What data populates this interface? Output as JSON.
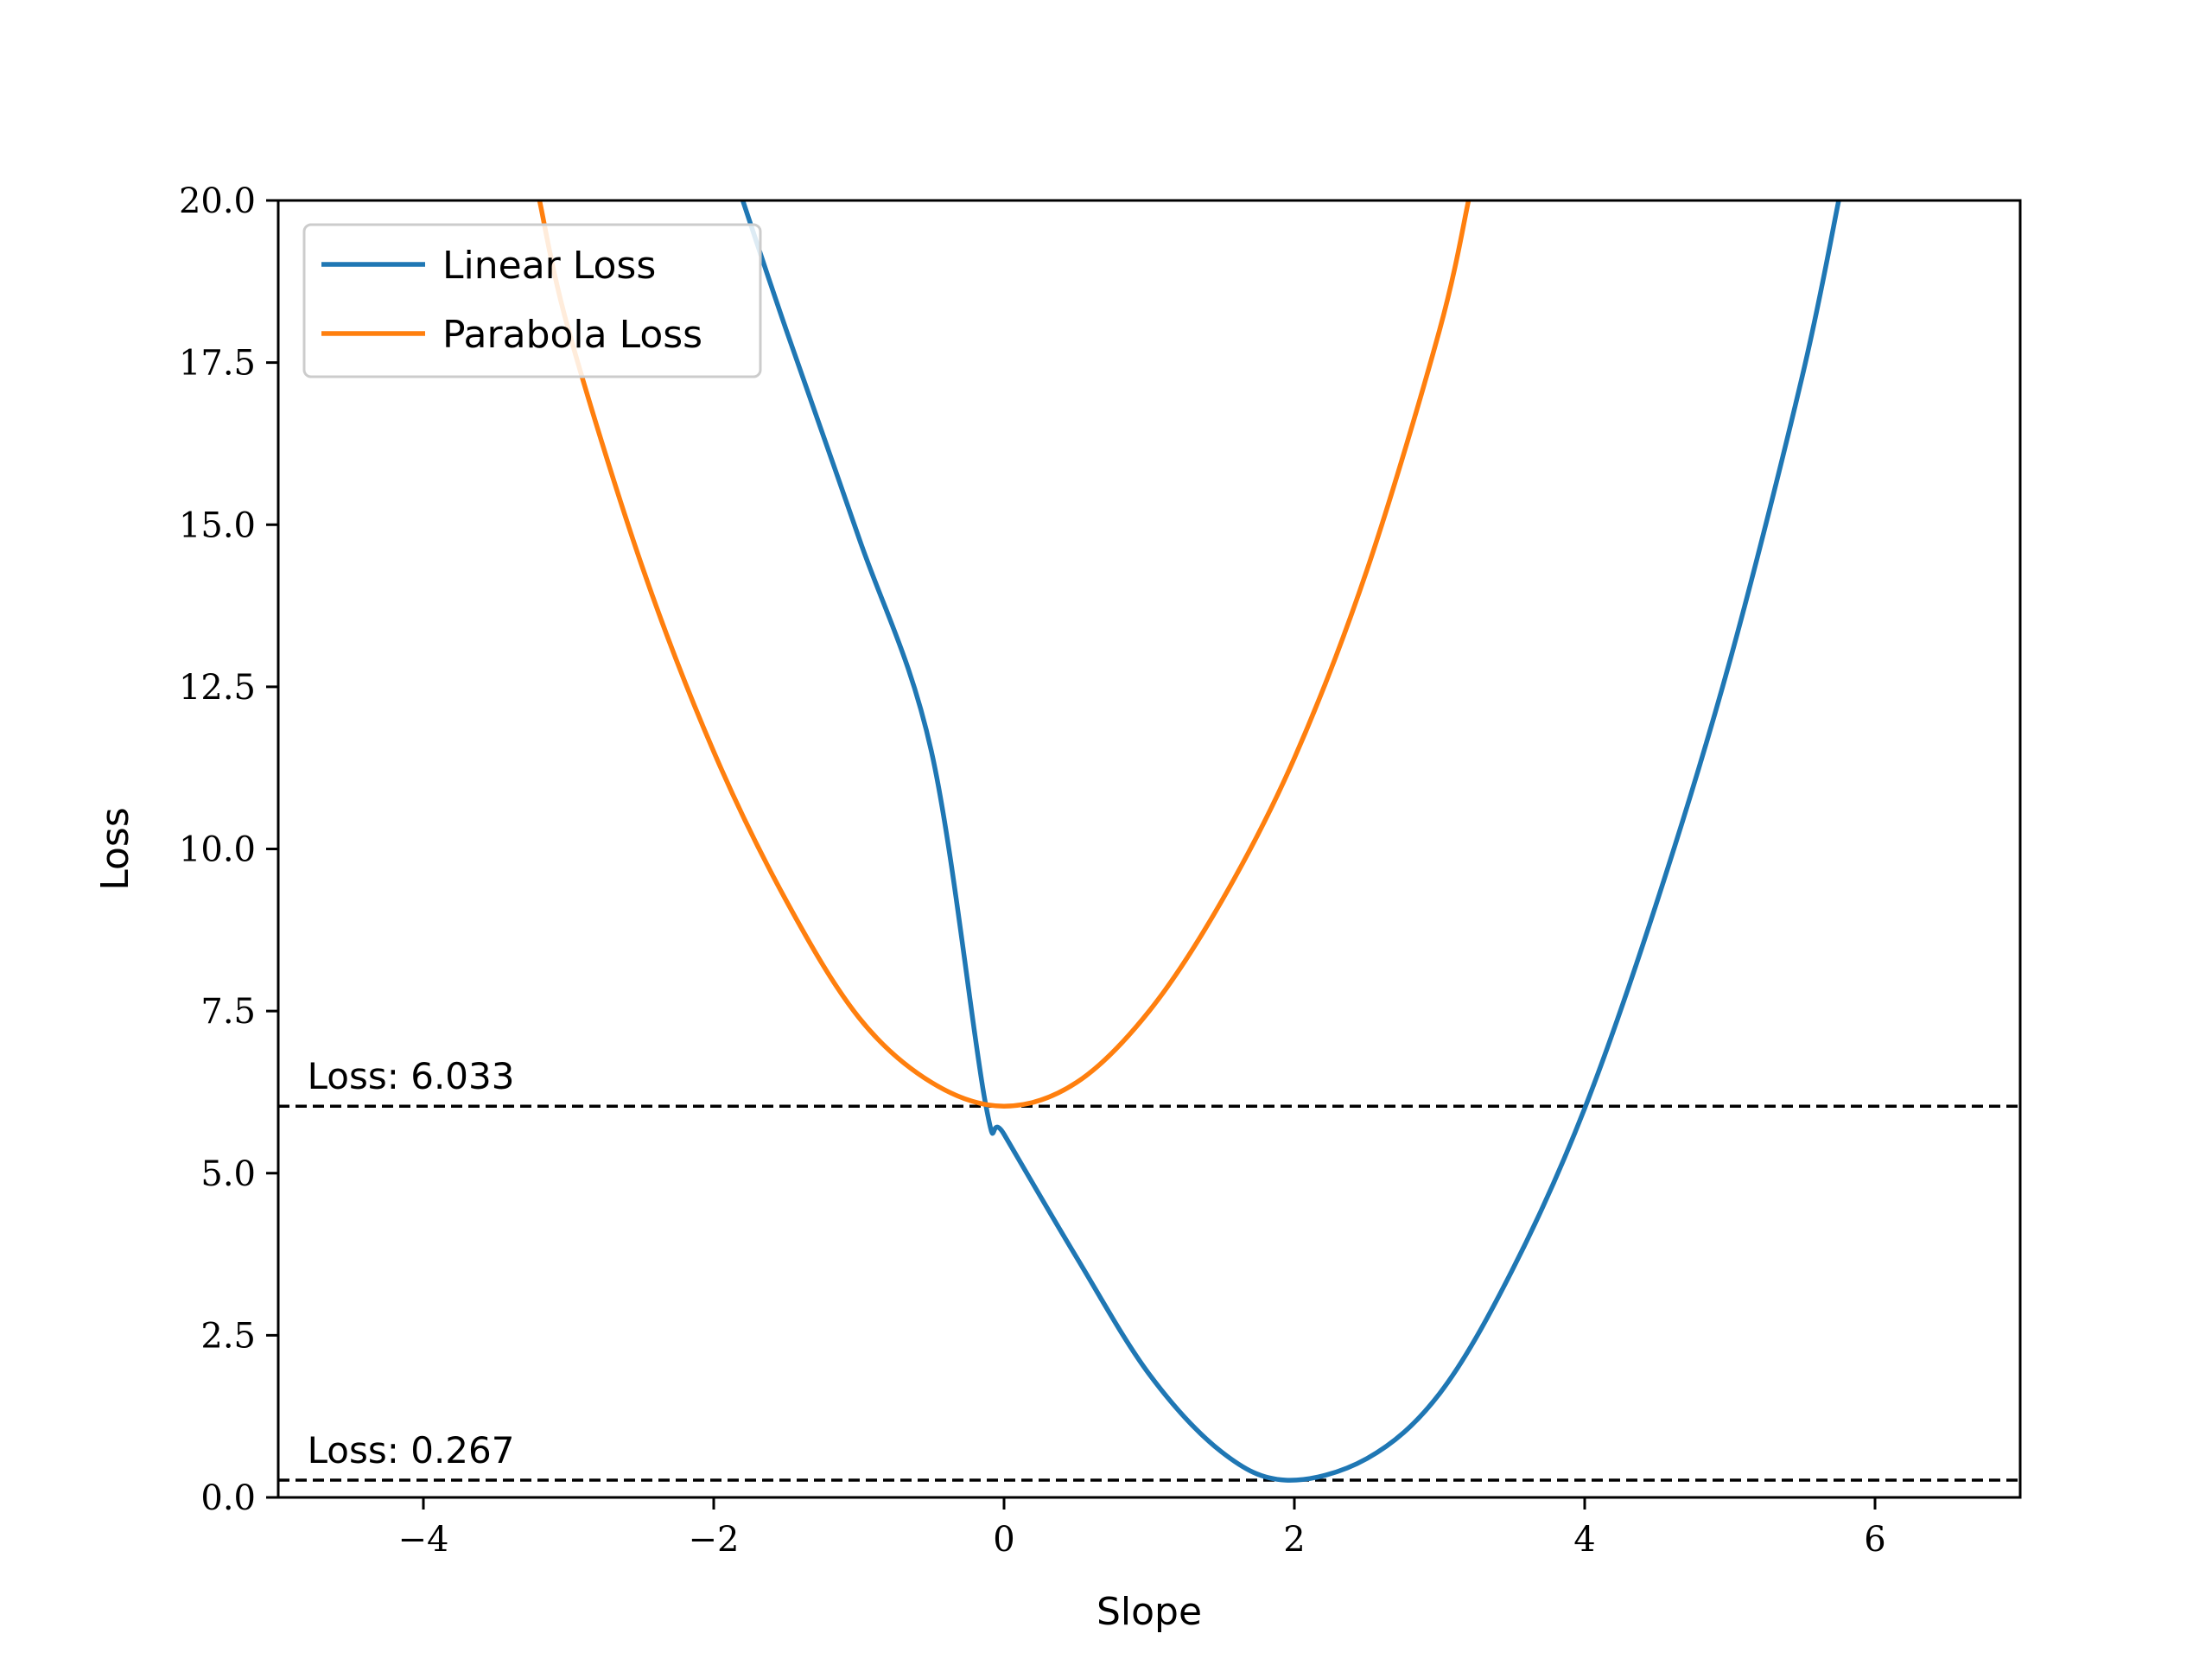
{
  "chart_data": {
    "type": "line",
    "xlabel": "Slope",
    "ylabel": "Loss",
    "xlim": [
      -5,
      7
    ],
    "ylim": [
      0,
      20
    ],
    "x_ticks": [
      -4,
      -2,
      0,
      2,
      4,
      6
    ],
    "x_tick_labels": [
      "−4",
      "−2",
      "0",
      "2",
      "4",
      "6"
    ],
    "y_ticks": [
      0,
      2.5,
      5,
      7.5,
      10,
      12.5,
      15,
      17.5,
      20
    ],
    "y_tick_labels": [
      "0.0",
      "2.5",
      "5.0",
      "7.5",
      "10.0",
      "12.5",
      "15.0",
      "17.5",
      "20.0"
    ],
    "grid": false,
    "legend_position": "top-left",
    "series": [
      {
        "name": "Linear Loss",
        "color": "#1f77b4",
        "x": [
          -1.8,
          -1.5,
          -1.0,
          -0.5,
          -0.13,
          0.0,
          0.5,
          1.0,
          1.5,
          1.94,
          2.5,
          3.0,
          3.5,
          4.0,
          4.5,
          5.0,
          5.5,
          5.75
        ],
        "y": [
          20.0,
          18.0,
          14.8,
          11.5,
          6.1,
          5.6,
          3.7,
          1.9,
          0.7,
          0.267,
          0.6,
          1.6,
          3.5,
          6.0,
          9.2,
          12.9,
          17.3,
          20.0
        ]
      },
      {
        "name": "Parabola Loss",
        "color": "#ff7f0e",
        "x": [
          -3.2,
          -3.0,
          -2.5,
          -2.0,
          -1.5,
          -1.0,
          -0.5,
          0.0,
          0.5,
          1.0,
          1.5,
          2.0,
          2.5,
          3.0,
          3.2
        ],
        "y": [
          20.0,
          18.0,
          14.4,
          11.5,
          9.2,
          7.4,
          6.4,
          6.033,
          6.4,
          7.5,
          9.2,
          11.4,
          14.3,
          18.0,
          20.0
        ]
      }
    ],
    "hlines": [
      {
        "y": 6.033,
        "label": "Loss: 6.033",
        "style": "dashed",
        "color": "#000000"
      },
      {
        "y": 0.267,
        "label": "Loss: 0.267",
        "style": "dashed",
        "color": "#000000"
      }
    ]
  }
}
